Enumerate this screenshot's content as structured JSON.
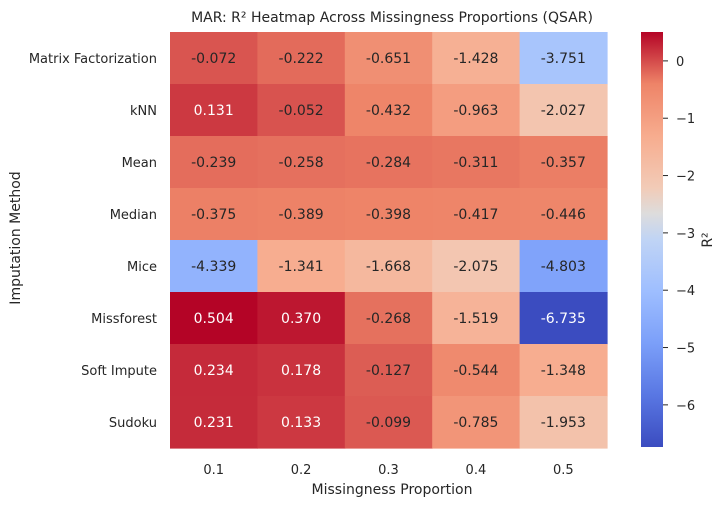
{
  "chart_data": {
    "type": "heatmap",
    "title": "MAR: R² Heatmap Across Missingness Proportions (QSAR)",
    "xlabel": "Missingness Proportion",
    "ylabel": "Imputation Method",
    "colorbar_label": "R²",
    "x": [
      "0.1",
      "0.2",
      "0.3",
      "0.4",
      "0.5"
    ],
    "y": [
      "Matrix Factorization",
      "kNN",
      "Mean",
      "Median",
      "Mice",
      "Missforest",
      "Soft Impute",
      "Sudoku"
    ],
    "values": [
      [
        -0.072,
        -0.222,
        -0.651,
        -1.428,
        -3.751
      ],
      [
        0.131,
        -0.052,
        -0.432,
        -0.963,
        -2.027
      ],
      [
        -0.239,
        -0.258,
        -0.284,
        -0.311,
        -0.357
      ],
      [
        -0.375,
        -0.389,
        -0.398,
        -0.417,
        -0.446
      ],
      [
        -4.339,
        -1.341,
        -1.668,
        -2.075,
        -4.803
      ],
      [
        0.504,
        0.37,
        -0.268,
        -1.519,
        -6.735
      ],
      [
        0.234,
        0.178,
        -0.127,
        -0.544,
        -1.348
      ],
      [
        0.231,
        0.133,
        -0.099,
        -0.785,
        -1.953
      ]
    ],
    "value_labels": [
      [
        "-0.072",
        "-0.222",
        "-0.651",
        "-1.428",
        "-3.751"
      ],
      [
        "0.131",
        "-0.052",
        "-0.432",
        "-0.963",
        "-2.027"
      ],
      [
        "-0.239",
        "-0.258",
        "-0.284",
        "-0.311",
        "-0.357"
      ],
      [
        "-0.375",
        "-0.389",
        "-0.398",
        "-0.417",
        "-0.446"
      ],
      [
        "-4.339",
        "-1.341",
        "-1.668",
        "-2.075",
        "-4.803"
      ],
      [
        "0.504",
        "0.370",
        "-0.268",
        "-1.519",
        "-6.735"
      ],
      [
        "0.234",
        "0.178",
        "-0.127",
        "-0.544",
        "-1.348"
      ],
      [
        "0.231",
        "0.133",
        "-0.099",
        "-0.785",
        "-1.953"
      ]
    ],
    "color_range": [
      -6.735,
      0.504
    ],
    "colormap": "coolwarm",
    "colorbar_ticks": [
      0,
      -1,
      -2,
      -3,
      -4,
      -5,
      -6
    ],
    "colorbar_tick_labels": [
      "0",
      "−1",
      "−2",
      "−3",
      "−4",
      "−5",
      "−6"
    ],
    "legend": "right",
    "grid": false
  }
}
